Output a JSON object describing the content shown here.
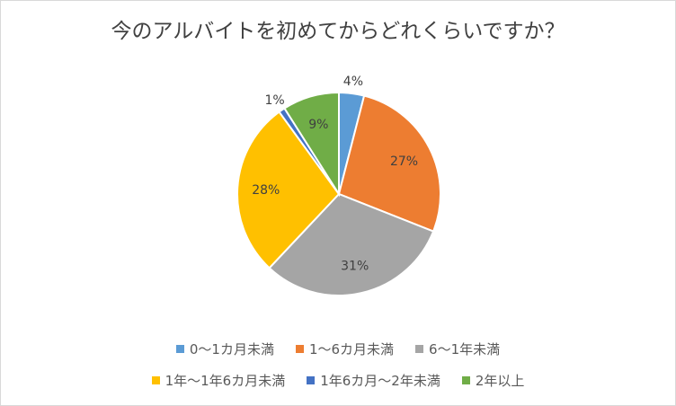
{
  "chart_data": {
    "type": "pie",
    "title": "今のアルバイトを初めてからどれくらいですか？",
    "slices": [
      {
        "label": "0～1カ月未満",
        "value": 4,
        "data_label": "4%",
        "color": "#5b9bd5"
      },
      {
        "label": "1～6カ月未満",
        "value": 27,
        "data_label": "27%",
        "color": "#ed7d31"
      },
      {
        "label": "6～1年未満",
        "value": 31,
        "data_label": "31%",
        "color": "#a5a5a5"
      },
      {
        "label": "1年～1年6カ月未満",
        "value": 28,
        "data_label": "28%",
        "color": "#ffc000"
      },
      {
        "label": "1年6カ月～2年未満",
        "value": 1,
        "data_label": "1%",
        "color": "#4472c4"
      },
      {
        "label": "2年以上",
        "value": 9,
        "data_label": "9%",
        "color": "#70ad47"
      }
    ],
    "legend_position": "bottom"
  }
}
